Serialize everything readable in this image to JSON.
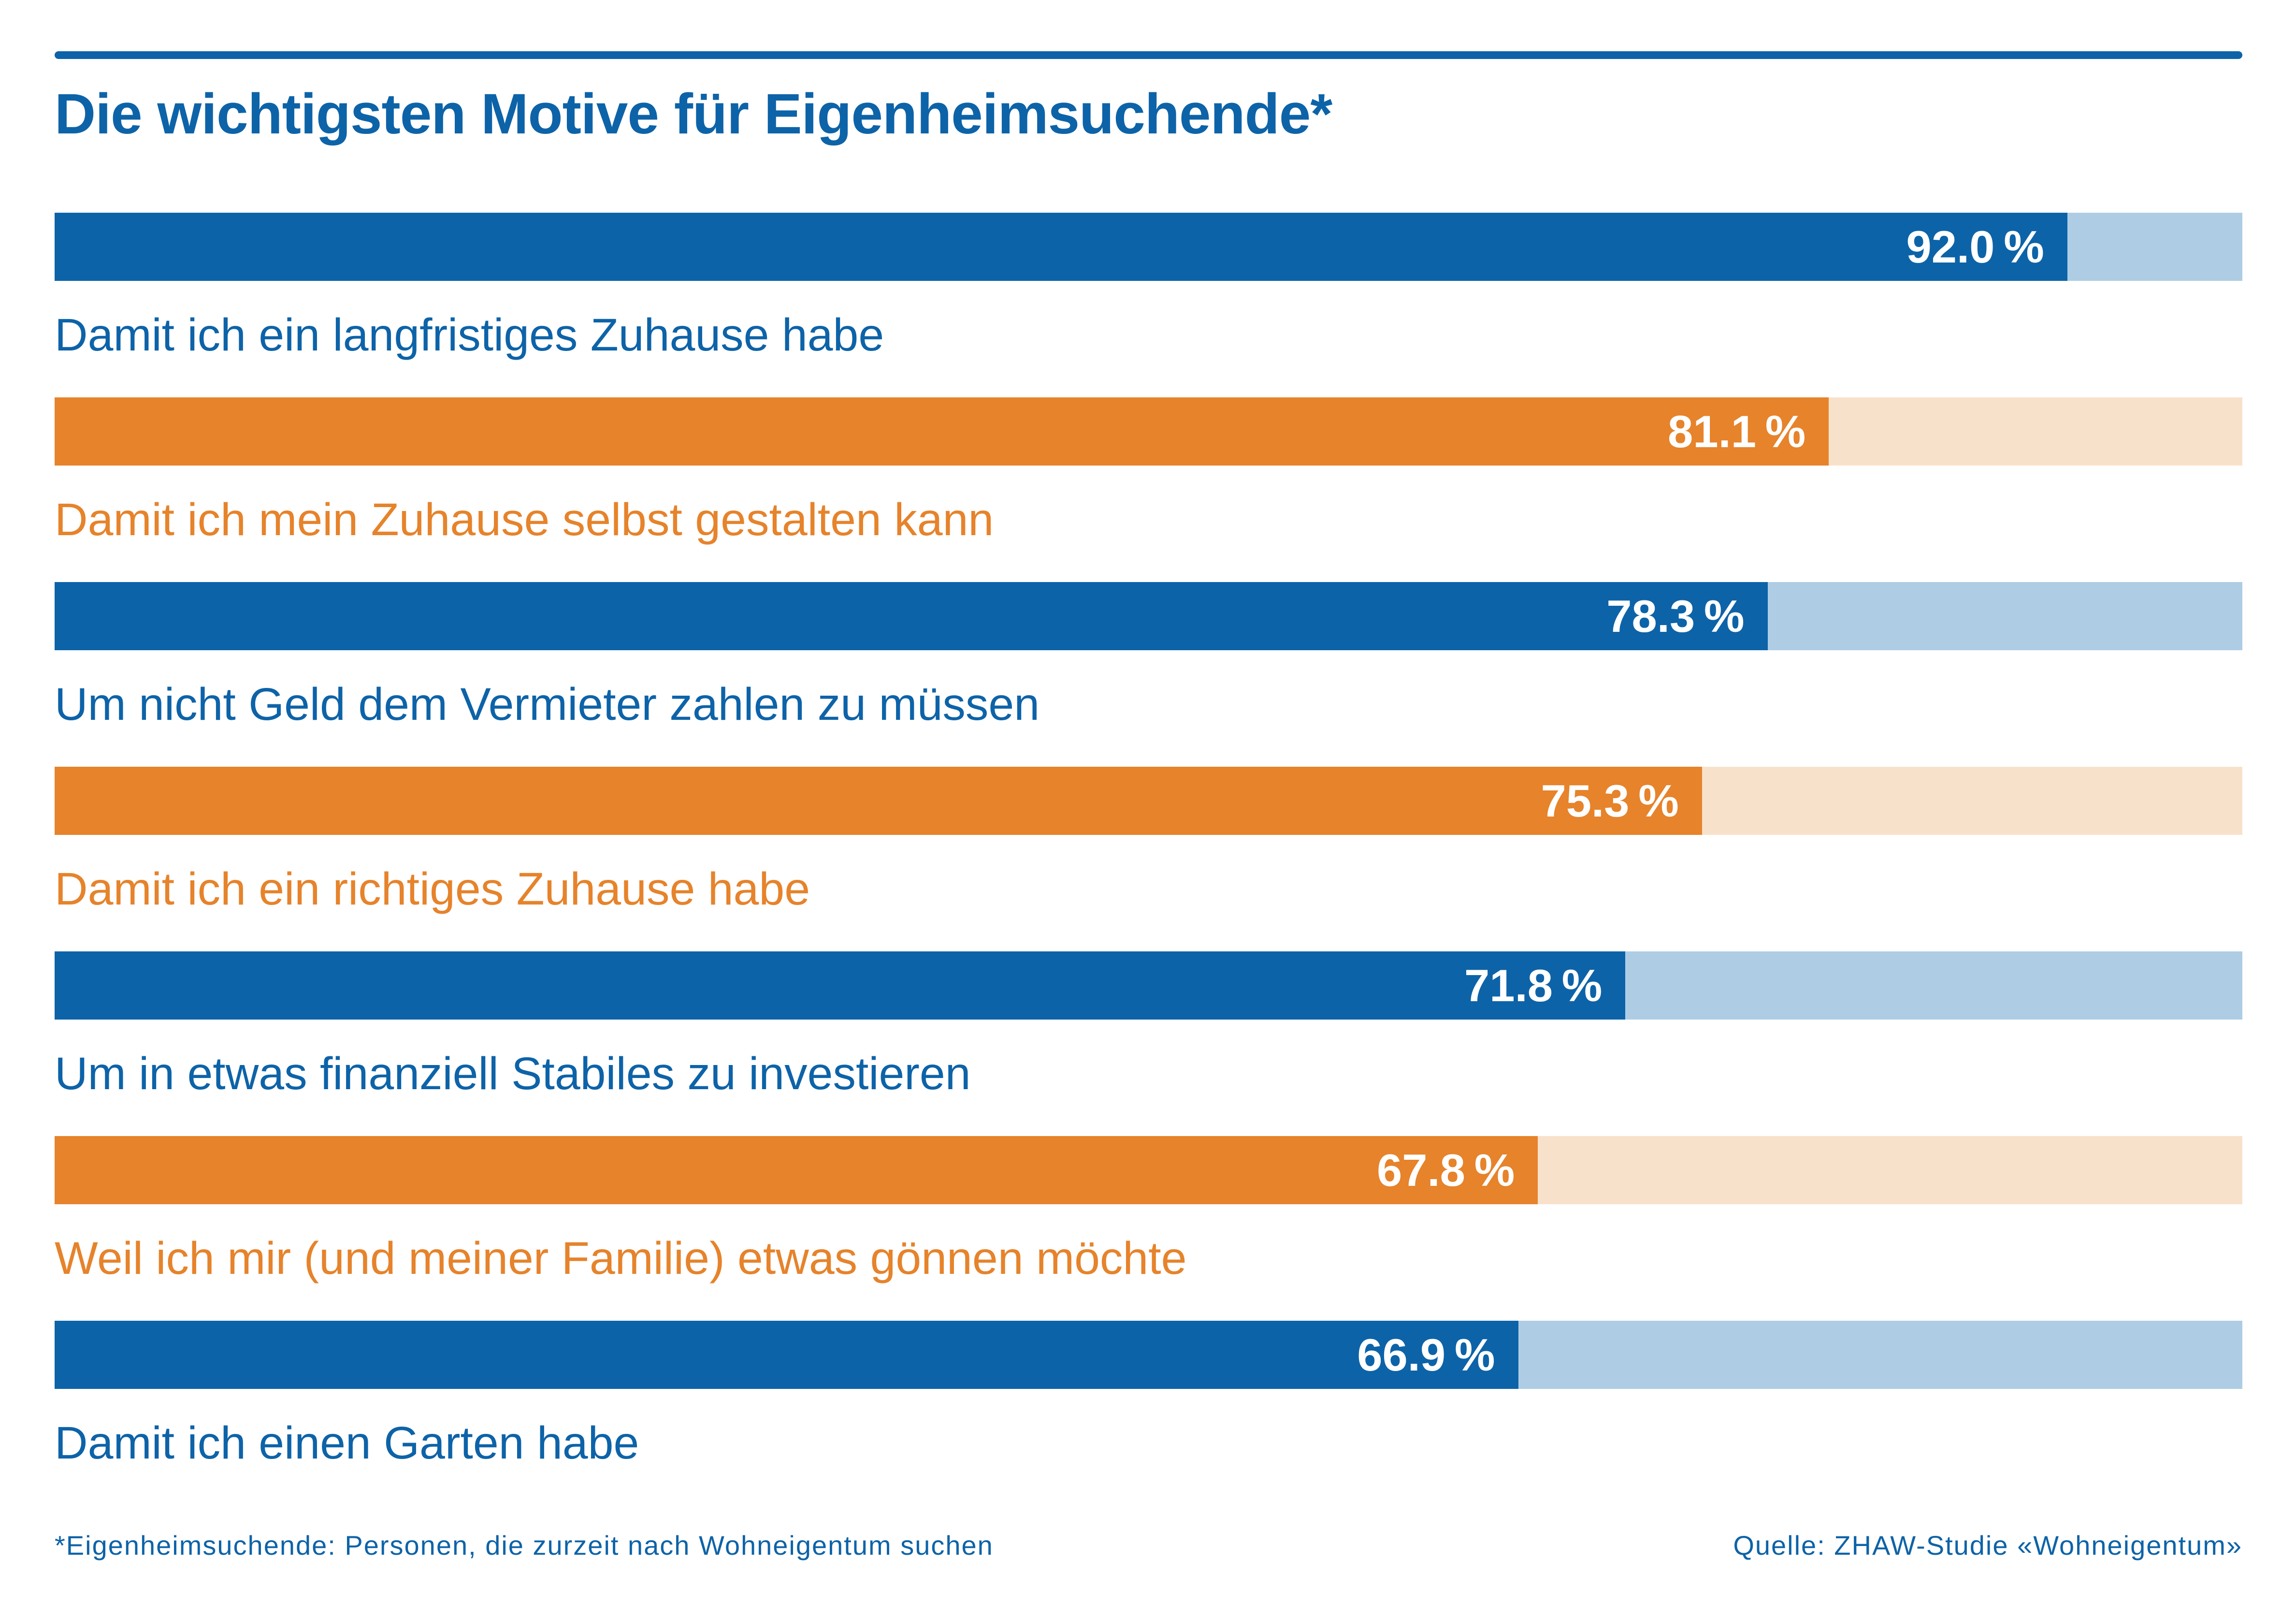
{
  "title": "Die wichtigsten Motive für Eigenheimsuchende*",
  "footnote": "*Eigenheimsuchende: Personen, die zurzeit nach Wohneigentum suchen",
  "source": "Quelle: ZHAW-Studie «Wohneigentum»",
  "colors": {
    "blue": "#0d63a8",
    "blue_track": "#aecde4",
    "orange": "#e6832b",
    "orange_track": "#f8e1cb",
    "value_text": "#ffffff"
  },
  "chart_data": {
    "type": "bar",
    "orientation": "horizontal",
    "title": "Die wichtigsten Motive für Eigenheimsuchende*",
    "xlabel": "",
    "ylabel": "",
    "value_unit": "%",
    "xlim": [
      0,
      100
    ],
    "grid": false,
    "legend": false,
    "rows": [
      {
        "label": "Damit ich ein langfristiges Zuhause habe",
        "value": 92.0,
        "display": "92.0 %",
        "theme": "blue"
      },
      {
        "label": "Damit ich mein Zuhause selbst gestalten kann",
        "value": 81.1,
        "display": "81.1 %",
        "theme": "orange"
      },
      {
        "label": "Um nicht Geld dem Vermieter zahlen zu müssen",
        "value": 78.3,
        "display": "78.3 %",
        "theme": "blue"
      },
      {
        "label": "Damit ich ein richtiges Zuhause habe",
        "value": 75.3,
        "display": "75.3 %",
        "theme": "orange"
      },
      {
        "label": "Um in etwas finanziell Stabiles zu investieren",
        "value": 71.8,
        "display": "71.8 %",
        "theme": "blue"
      },
      {
        "label": "Weil ich mir (und meiner Familie) etwas gönnen möchte",
        "value": 67.8,
        "display": "67.8 %",
        "theme": "orange"
      },
      {
        "label": "Damit ich einen Garten habe",
        "value": 66.9,
        "display": "66.9 %",
        "theme": "blue"
      }
    ]
  }
}
